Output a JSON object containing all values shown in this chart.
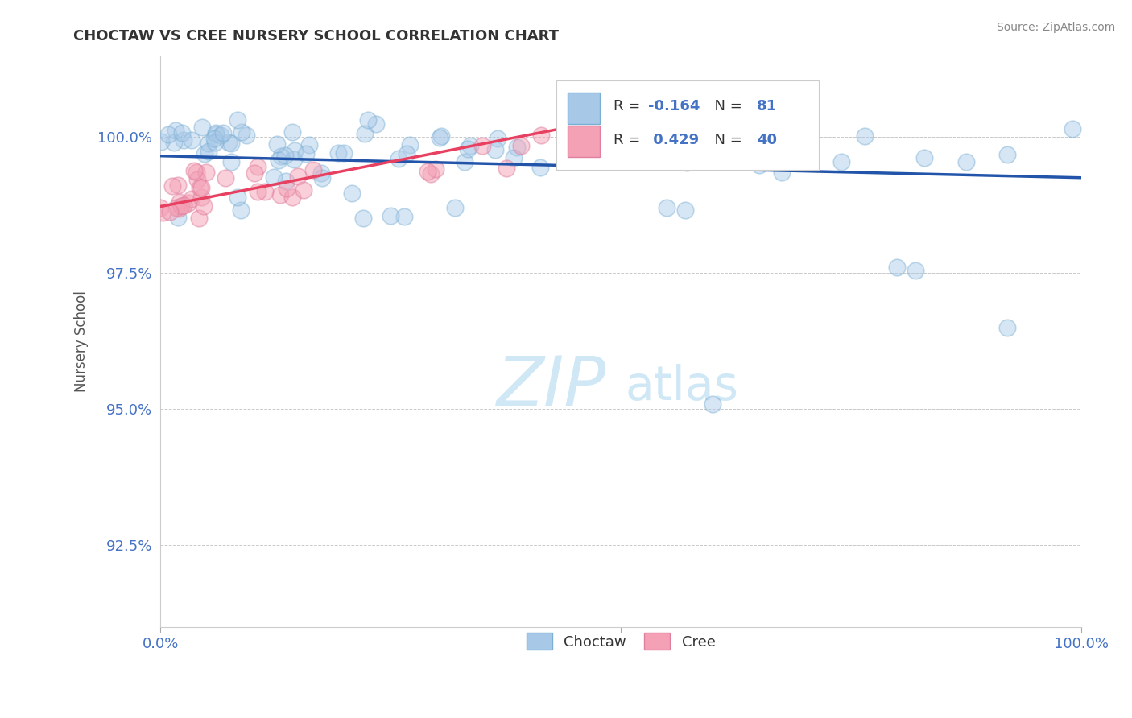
{
  "title": "CHOCTAW VS CREE NURSERY SCHOOL CORRELATION CHART",
  "source": "Source: ZipAtlas.com",
  "ylabel": "Nursery School",
  "xlim": [
    0.0,
    100.0
  ],
  "ylim": [
    91.0,
    101.5
  ],
  "yticks": [
    92.5,
    95.0,
    97.5,
    100.0
  ],
  "ytick_labels": [
    "92.5%",
    "95.0%",
    "97.5%",
    "100.0%"
  ],
  "choctaw_color": "#a8c8e8",
  "cree_color": "#f4a0b5",
  "choctaw_edge_color": "#7aafd4",
  "cree_edge_color": "#e080a0",
  "choctaw_R": -0.164,
  "choctaw_N": 81,
  "cree_R": 0.429,
  "cree_N": 40,
  "choctaw_trend_color": "#2255aa",
  "cree_trend_color": "#e84060",
  "background_color": "#ffffff",
  "grid_color": "#bbbbbb",
  "watermark_color": "#d0e8f5",
  "tick_color": "#4472c4",
  "title_color": "#333333",
  "source_color": "#888888"
}
